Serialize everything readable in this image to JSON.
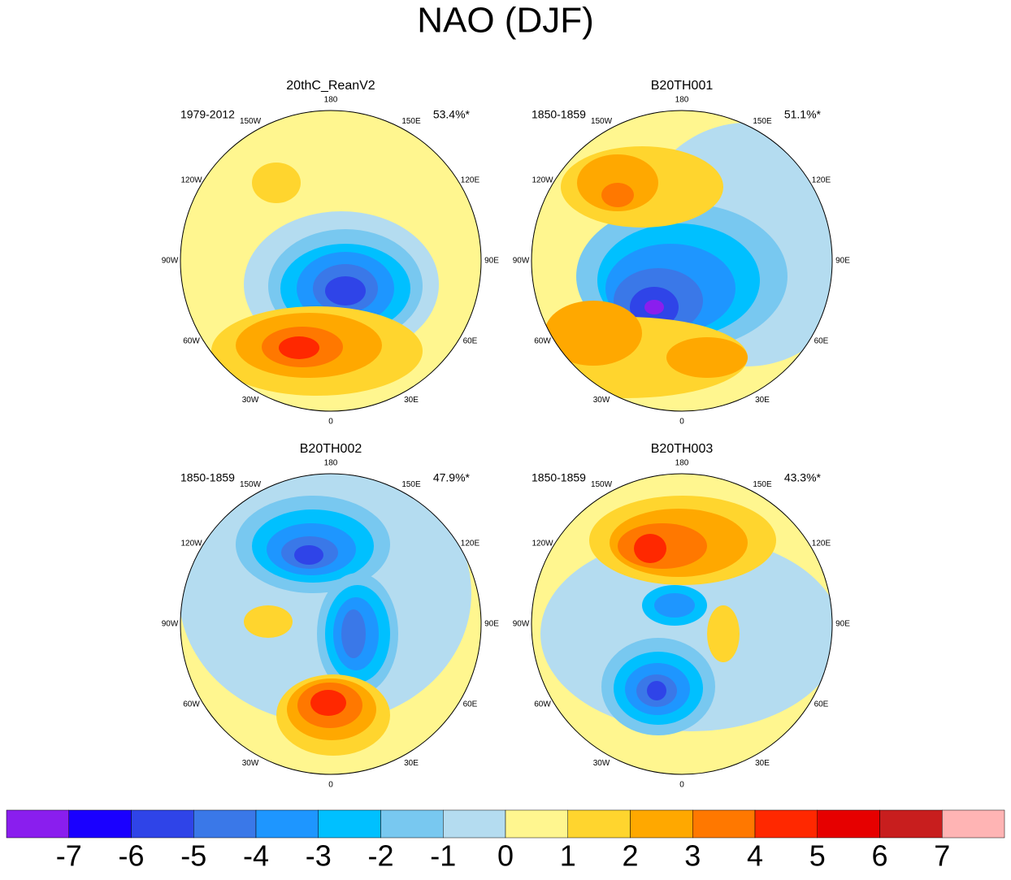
{
  "title": "NAO (DJF)",
  "panels": [
    {
      "title": "20thC_ReanV2",
      "period": "1979-2012",
      "variance": "53.4%*"
    },
    {
      "title": "B20TH001",
      "period": "1850-1859",
      "variance": "51.1%*"
    },
    {
      "title": "B20TH002",
      "period": "1850-1859",
      "variance": "47.9%*"
    },
    {
      "title": "B20TH003",
      "period": "1850-1859",
      "variance": "43.3%*"
    }
  ],
  "longitude_labels": [
    "180",
    "150E",
    "120E",
    "90E",
    "60E",
    "30E",
    "0",
    "30W",
    "60W",
    "90W",
    "120W",
    "150W"
  ],
  "colorbar": {
    "colors": [
      "#8a1eee",
      "#1a00ff",
      "#2f44e8",
      "#3a78e8",
      "#1e96ff",
      "#00c0ff",
      "#78c8f0",
      "#b4dcf0",
      "#fff68f",
      "#ffd52e",
      "#ffa800",
      "#ff7800",
      "#ff2800",
      "#e60000",
      "#c81e1e",
      "#ffb4b4"
    ],
    "labels": [
      -7,
      -6,
      -5,
      -4,
      -3,
      -2,
      -1,
      0,
      1,
      2,
      3,
      4,
      5,
      6,
      7
    ]
  }
}
